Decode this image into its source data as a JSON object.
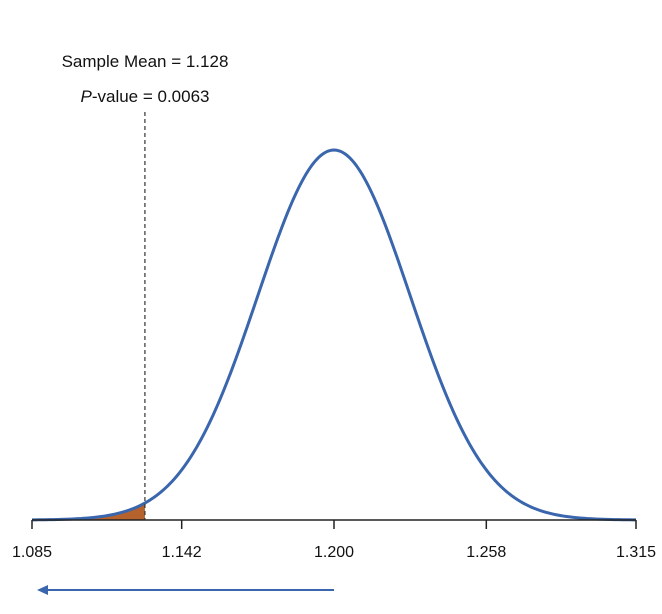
{
  "colors": {
    "curve": "#3a66ad",
    "tail_fill": "#b5622d",
    "axis": "#222222",
    "reference_line": "#333333",
    "arrow": "#3a66ad"
  },
  "chart_data": {
    "type": "area",
    "title": "",
    "xlabel": "",
    "ylabel": "",
    "distribution": "normal",
    "mean": 1.2,
    "sd": 0.029,
    "xlim": [
      1.085,
      1.315
    ],
    "x_ticks": [
      {
        "value": 1.085,
        "label": "1.085"
      },
      {
        "value": 1.142,
        "label": "1.142"
      },
      {
        "value": 1.2,
        "label": "1.200"
      },
      {
        "value": 1.258,
        "label": "1.258"
      },
      {
        "value": 1.315,
        "label": "1.315"
      }
    ],
    "sample_mean": 1.128,
    "p_value": 0.0063,
    "shaded_region": {
      "from": 1.085,
      "to": 1.128,
      "tail": "left"
    },
    "arrow": {
      "from": 1.2,
      "to": 1.085,
      "direction": "left"
    },
    "annotations": {
      "sample_mean_label": "Sample Mean = 1.128",
      "p_label_italic": "P",
      "p_label_rest": "-value = 0.0063"
    },
    "grid": false
  }
}
